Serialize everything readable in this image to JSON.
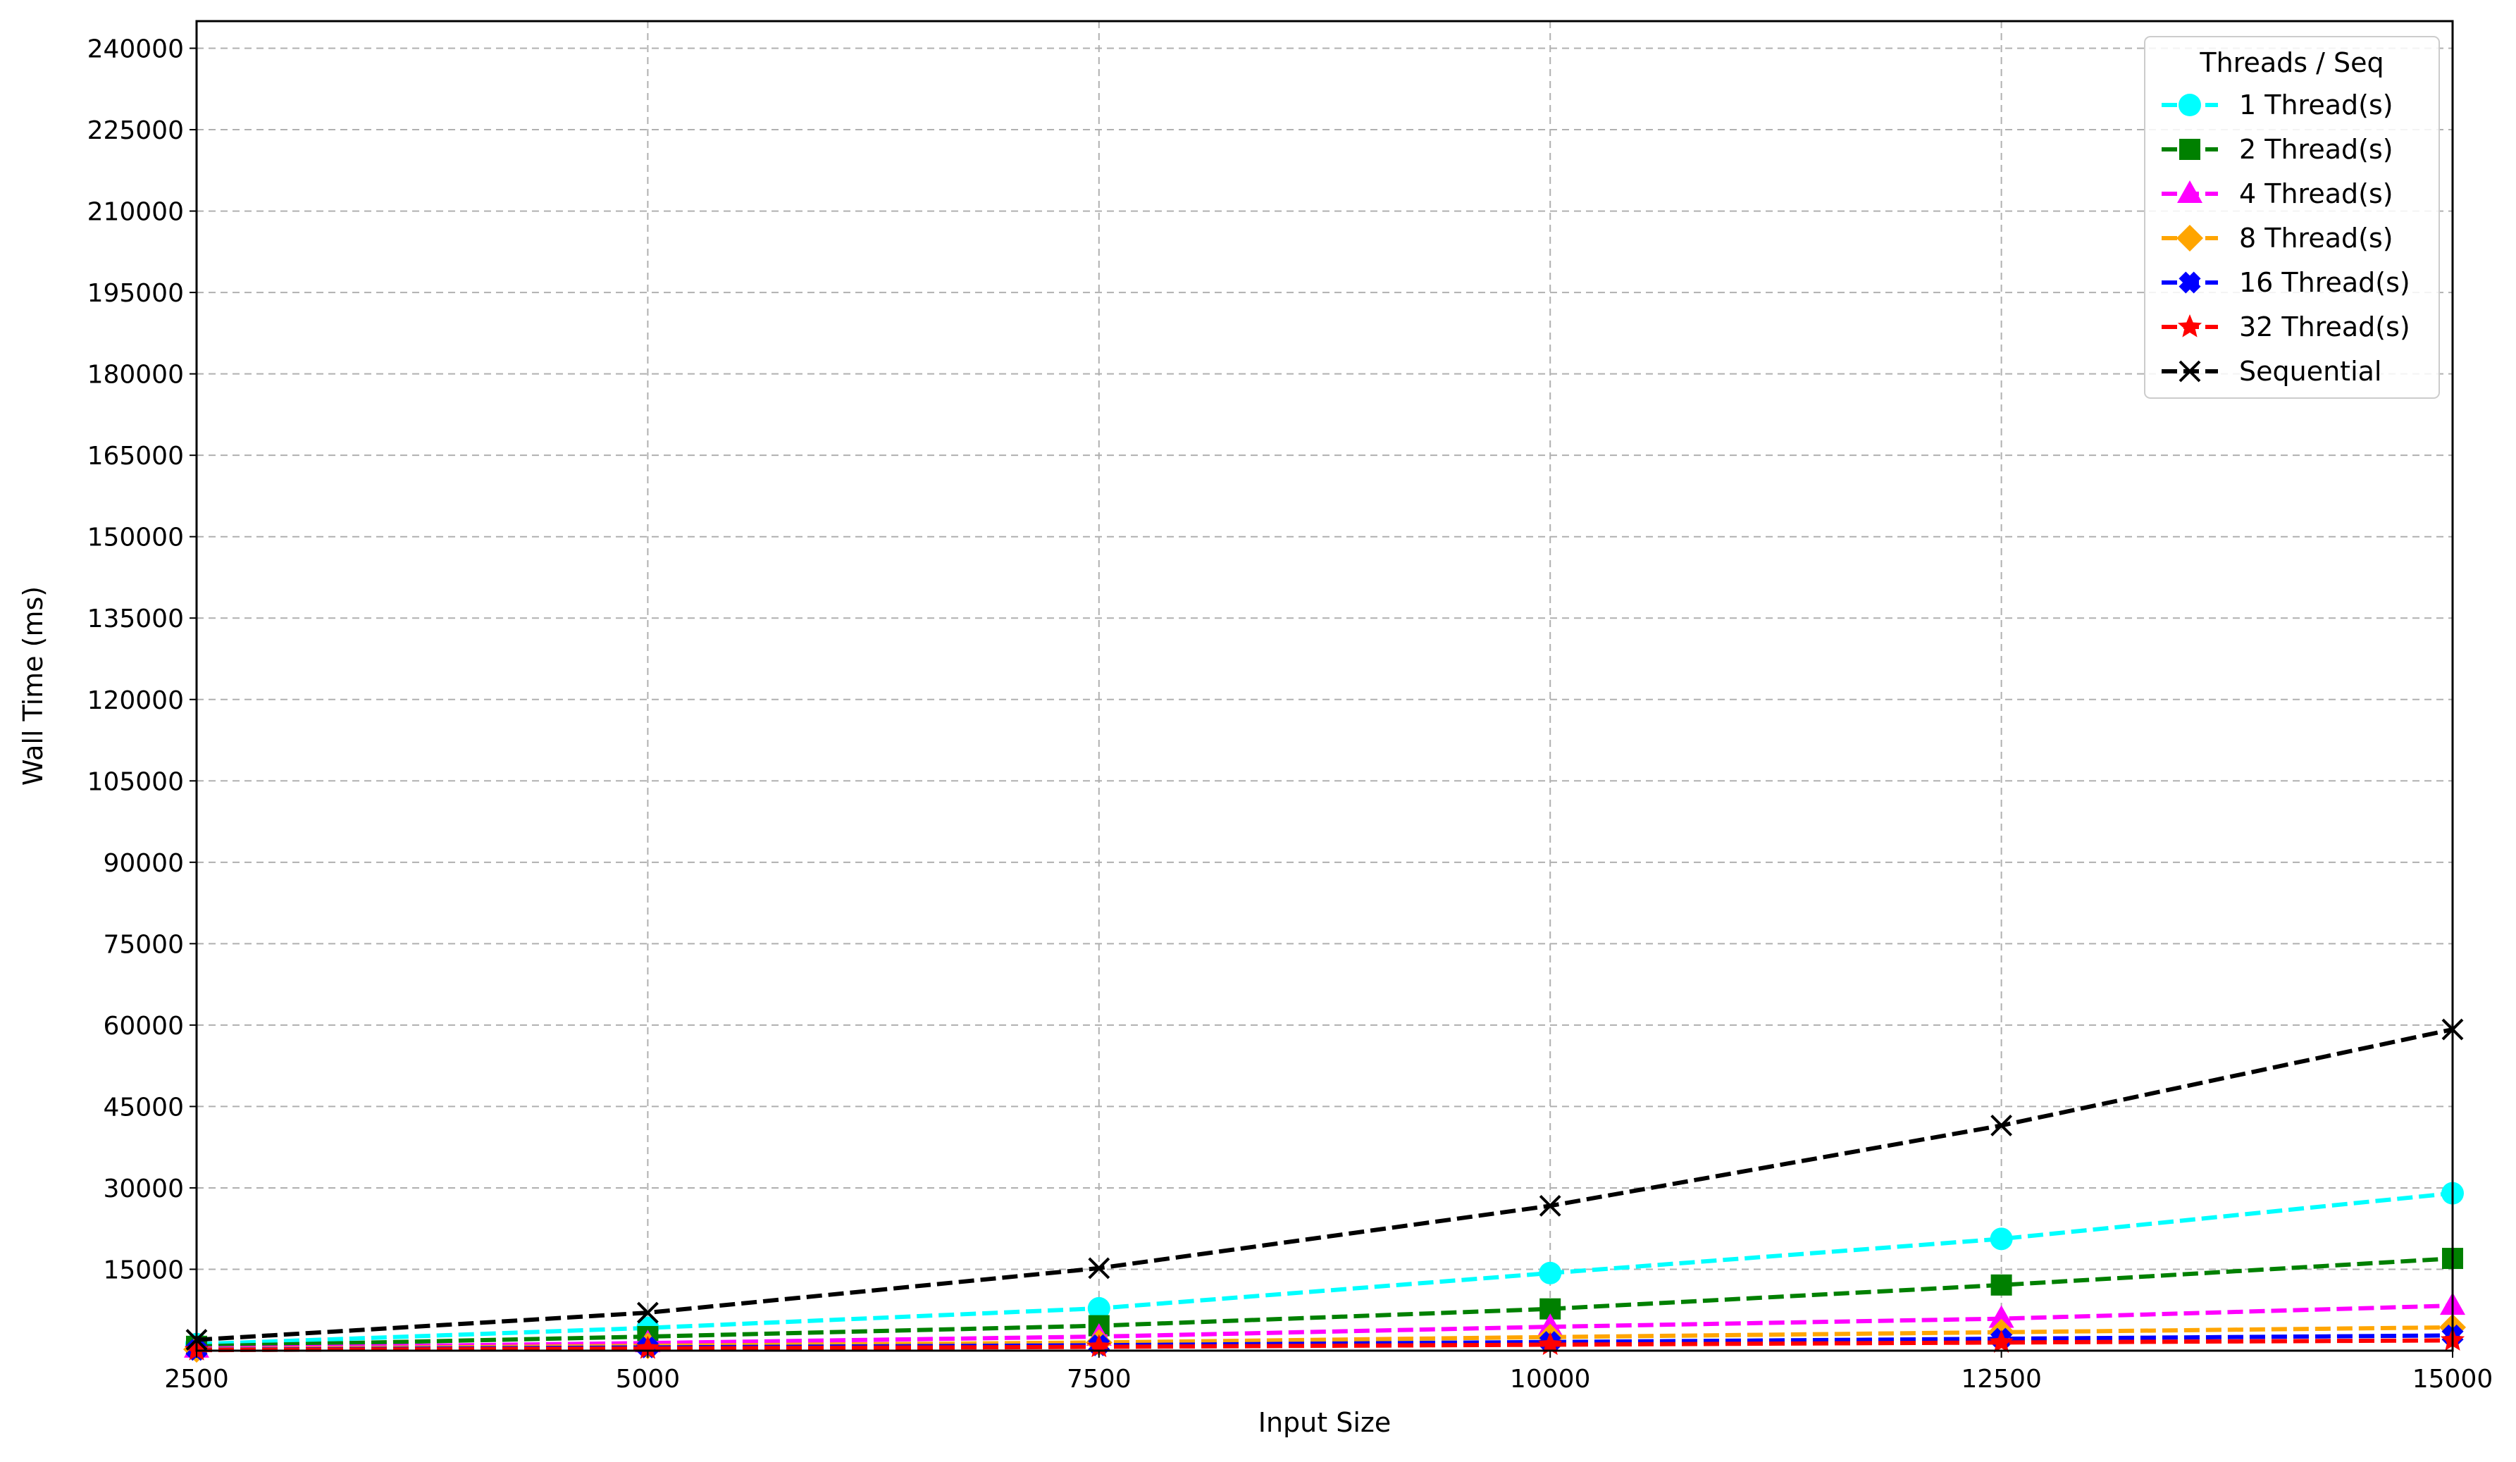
{
  "chart_data": {
    "type": "line",
    "title": "",
    "xlabel": "Input Size",
    "ylabel": "Wall Time (ms)",
    "x": [
      2500,
      5000,
      7500,
      10000,
      12500,
      15000
    ],
    "xlim": [
      2500,
      15000
    ],
    "ylim": [
      0,
      245000
    ],
    "xticks": [
      "2500",
      "5000",
      "7500",
      "10000",
      "12500",
      "15000"
    ],
    "yticks": [
      "15000",
      "30000",
      "45000",
      "60000",
      "75000",
      "90000",
      "105000",
      "120000",
      "135000",
      "150000",
      "165000",
      "180000",
      "195000",
      "210000",
      "225000",
      "240000"
    ],
    "grid": true,
    "legend": {
      "title": "Threads / Seq",
      "placement": "top-right"
    },
    "series": [
      {
        "name": "1 Thread(s)",
        "color": "#00ffff",
        "marker": "circle",
        "values": [
          1200,
          4200,
          7800,
          14300,
          20600,
          29000
        ]
      },
      {
        "name": "2 Thread(s)",
        "color": "#008000",
        "marker": "square",
        "values": [
          800,
          2600,
          4600,
          7700,
          12100,
          17000
        ]
      },
      {
        "name": "4 Thread(s)",
        "color": "#ff00ff",
        "marker": "triangle",
        "values": [
          400,
          1400,
          2600,
          4400,
          5900,
          8300
        ]
      },
      {
        "name": "8 Thread(s)",
        "color": "#ffa500",
        "marker": "diamond",
        "values": [
          250,
          900,
          1500,
          2500,
          3400,
          4300
        ]
      },
      {
        "name": "16 Thread(s)",
        "color": "#0000ff",
        "marker": "plus-filled",
        "values": [
          150,
          600,
          1000,
          1600,
          2200,
          2800
        ]
      },
      {
        "name": "32 Thread(s)",
        "color": "#ff0000",
        "marker": "star",
        "values": [
          100,
          400,
          700,
          1100,
          1500,
          1900
        ]
      },
      {
        "name": "Sequential",
        "color": "#000000",
        "marker": "x",
        "values": [
          2000,
          7000,
          15200,
          26700,
          41500,
          59200
        ]
      }
    ]
  }
}
